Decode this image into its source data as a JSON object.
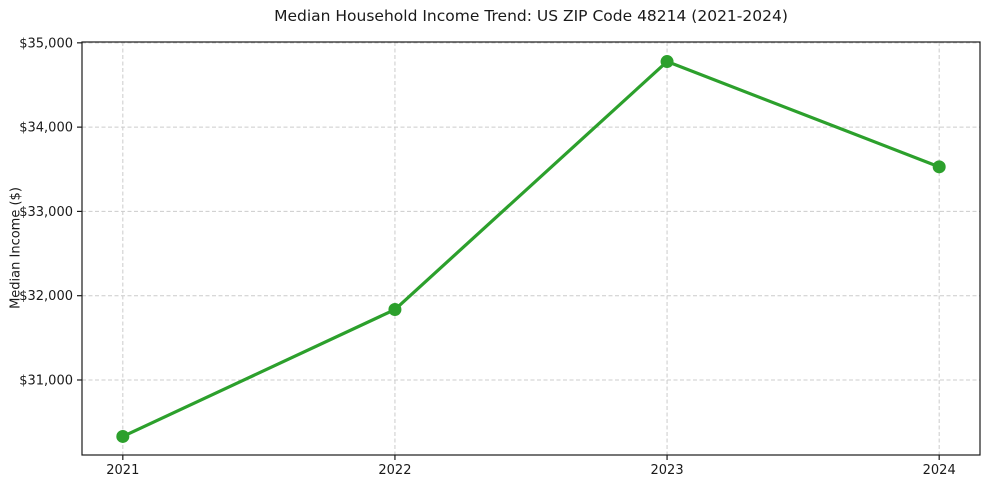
{
  "chart_data": {
    "type": "line",
    "title": "Median Household Income Trend: US ZIP Code 48214 (2021-2024)",
    "xlabel": "",
    "ylabel": "Median Income ($)",
    "x": [
      2021,
      2022,
      2023,
      2024
    ],
    "series": [
      {
        "name": "Median Household Income",
        "values": [
          30330,
          31836,
          34778,
          33529
        ]
      }
    ],
    "xticks": [
      2021,
      2022,
      2023,
      2024
    ],
    "xtick_labels": [
      "2021",
      "2022",
      "2023",
      "2024"
    ],
    "yticks": [
      31000,
      32000,
      33000,
      34000,
      35000
    ],
    "ytick_labels": [
      "$31,000",
      "$32,000",
      "$33,000",
      "$34,000",
      "$35,000"
    ],
    "xlim": [
      2020.85,
      2024.15
    ],
    "ylim": [
      30110,
      35010
    ],
    "grid": true,
    "grid_style": "dashed",
    "grid_color": "#cccccc",
    "line_color": "#2ca02c",
    "marker": "o",
    "spine_color": "#1a1a1a",
    "background": "#ffffff"
  }
}
